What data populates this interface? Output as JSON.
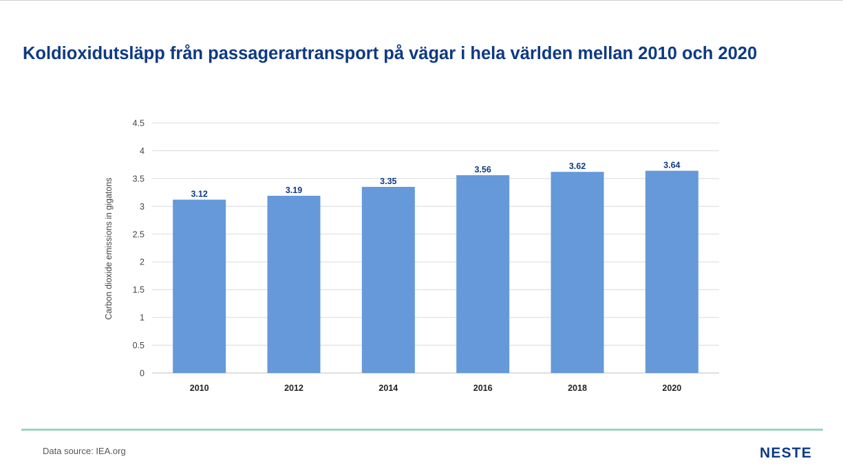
{
  "title": "Koldioxidutsläpp från passagerartransport på vägar i hela världen mellan 2010 och 2020",
  "source": "Data source: IEA.org",
  "logo_text": "NESTE",
  "colors": {
    "title": "#0e3a84",
    "bar": "#6699d9",
    "value_label": "#0e3a84",
    "grid": "#d9d9d9",
    "divider": "#9dd3bd"
  },
  "chart_data": {
    "type": "bar",
    "categories": [
      "2010",
      "2012",
      "2014",
      "2016",
      "2018",
      "2020"
    ],
    "values": [
      3.12,
      3.19,
      3.35,
      3.56,
      3.62,
      3.64
    ],
    "data_labels": [
      "3.12",
      "3.19",
      "3.35",
      "3.56",
      "3.62",
      "3.64"
    ],
    "ylabel": "Carbon dioxide emissions in gigatons",
    "ylim": [
      0,
      4.5
    ],
    "yticks": [
      "0",
      "0.5",
      "1",
      "1.5",
      "2",
      "2.5",
      "3",
      "3.5",
      "4",
      "4.5"
    ],
    "ytick_values": [
      0,
      0.5,
      1,
      1.5,
      2,
      2.5,
      3,
      3.5,
      4,
      4.5
    ],
    "grid": true,
    "legend": "none"
  }
}
